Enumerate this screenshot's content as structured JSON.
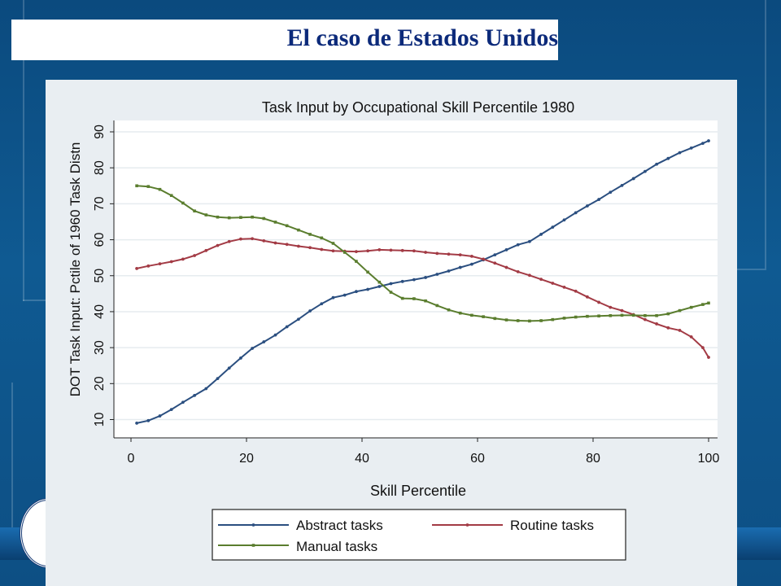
{
  "slide": {
    "title": "El caso de Estados Unidos"
  },
  "chart_data": {
    "type": "line",
    "title": "Task Input by Occupational Skill Percentile 1980",
    "xlabel": "Skill Percentile",
    "ylabel": "DOT Task Input: Pctile of 1960 Task Distn",
    "xlim": [
      0,
      100
    ],
    "ylim": [
      8,
      92
    ],
    "xticks": [
      0,
      20,
      40,
      60,
      80,
      100
    ],
    "yticks": [
      10,
      20,
      30,
      40,
      50,
      60,
      70,
      80,
      90
    ],
    "grid": true,
    "legend_position": "bottom",
    "series": [
      {
        "name": "Abstract tasks",
        "color": "#2b4f80",
        "marker": "circle",
        "x": [
          1,
          3,
          5,
          7,
          9,
          11,
          13,
          15,
          17,
          19,
          21,
          23,
          25,
          27,
          29,
          31,
          33,
          35,
          37,
          39,
          41,
          43,
          45,
          47,
          49,
          51,
          53,
          55,
          57,
          59,
          61,
          63,
          65,
          67,
          69,
          71,
          73,
          75,
          77,
          79,
          81,
          83,
          85,
          87,
          89,
          91,
          93,
          95,
          97,
          99,
          100
        ],
        "y": [
          9,
          9.7,
          11,
          12.8,
          14.8,
          16.7,
          18.6,
          21.4,
          24.3,
          27.1,
          29.8,
          31.6,
          33.5,
          35.8,
          37.9,
          40.2,
          42.2,
          43.9,
          44.6,
          45.6,
          46.2,
          47,
          47.8,
          48.4,
          48.9,
          49.5,
          50.4,
          51.3,
          52.3,
          53.2,
          54.4,
          55.8,
          57.2,
          58.6,
          59.5,
          61.5,
          63.5,
          65.5,
          67.5,
          69.4,
          71.2,
          73.2,
          75.1,
          77,
          79,
          81,
          82.6,
          84.2,
          85.5,
          86.8,
          87.5
        ]
      },
      {
        "name": "Routine tasks",
        "color": "#a33b45",
        "marker": "circle",
        "x": [
          1,
          3,
          5,
          7,
          9,
          11,
          13,
          15,
          17,
          19,
          21,
          23,
          25,
          27,
          29,
          31,
          33,
          35,
          37,
          39,
          41,
          43,
          45,
          47,
          49,
          51,
          53,
          55,
          57,
          59,
          61,
          63,
          65,
          67,
          69,
          71,
          73,
          75,
          77,
          79,
          81,
          83,
          85,
          87,
          89,
          91,
          93,
          95,
          97,
          99,
          100
        ],
        "y": [
          52,
          52.7,
          53.3,
          53.9,
          54.6,
          55.6,
          57,
          58.4,
          59.5,
          60.2,
          60.3,
          59.7,
          59.1,
          58.7,
          58.2,
          57.8,
          57.3,
          56.9,
          56.8,
          56.7,
          56.9,
          57.2,
          57.1,
          57,
          56.9,
          56.5,
          56.2,
          56,
          55.8,
          55.4,
          54.6,
          53.5,
          52.3,
          51.1,
          50.1,
          49,
          47.9,
          46.8,
          45.7,
          44.1,
          42.6,
          41.2,
          40.3,
          39.2,
          37.8,
          36.6,
          35.5,
          34.8,
          33,
          30,
          27.3
        ]
      },
      {
        "name": "Manual tasks",
        "color": "#5a7d2e",
        "marker": "square",
        "x": [
          1,
          3,
          5,
          7,
          9,
          11,
          13,
          15,
          17,
          19,
          21,
          23,
          25,
          27,
          29,
          31,
          33,
          35,
          37,
          39,
          41,
          43,
          45,
          47,
          49,
          51,
          53,
          55,
          57,
          59,
          61,
          63,
          65,
          67,
          69,
          71,
          73,
          75,
          77,
          79,
          81,
          83,
          85,
          87,
          89,
          91,
          93,
          95,
          97,
          99,
          100
        ],
        "y": [
          75,
          74.8,
          74,
          72.3,
          70.2,
          68,
          66.9,
          66.3,
          66.1,
          66.2,
          66.3,
          65.9,
          64.9,
          63.9,
          62.7,
          61.5,
          60.5,
          59,
          56.5,
          54,
          51,
          48.2,
          45.4,
          43.7,
          43.6,
          43,
          41.7,
          40.5,
          39.6,
          39,
          38.6,
          38.1,
          37.7,
          37.5,
          37.4,
          37.5,
          37.8,
          38.2,
          38.5,
          38.7,
          38.8,
          38.9,
          39,
          39,
          38.9,
          38.9,
          39.4,
          40.3,
          41.2,
          42,
          42.4
        ]
      }
    ],
    "legend": [
      {
        "label": "Abstract tasks"
      },
      {
        "label": "Routine tasks"
      },
      {
        "label": "Manual tasks"
      }
    ]
  }
}
